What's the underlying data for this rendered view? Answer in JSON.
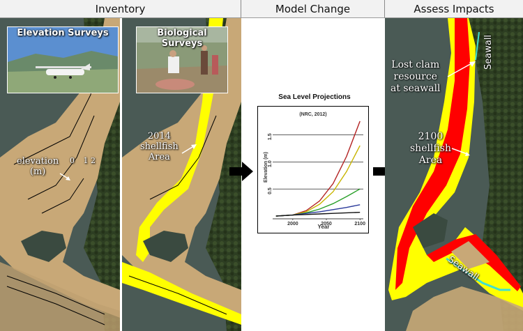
{
  "headers": {
    "inventory": "Inventory",
    "model_change": "Model Change",
    "assess_impacts": "Assess Impacts"
  },
  "photos": {
    "elevation_surveys": "Elevation Surveys",
    "biological_surveys": "Biological Surveys"
  },
  "labels": {
    "elevation_title": "elevation",
    "elevation_unit": "(m)",
    "elevation_value_0": "0",
    "elevation_value_1": "1",
    "elevation_value_2": "2",
    "shellfish_2014_year": "2014",
    "shellfish_2014_word": "shellfish",
    "shellfish_2014_area": "Area",
    "lost_clam_line1": "Lost clam",
    "lost_clam_line2": "resource",
    "lost_clam_line3": "at seawall",
    "shellfish_2100_year": "2100",
    "shellfish_2100_word": "shellfish",
    "shellfish_2100_area": "Area",
    "seawall_top": "Seawall",
    "seawall_bottom": "Seawall"
  },
  "colors": {
    "shellfish_area": "#ffff00",
    "lost_area": "#ff0000",
    "seawall": "#40e0d0",
    "tidal_flat": "#c8a877",
    "water": "#4a5a55",
    "forest": "#2d3e22"
  },
  "chart_data": {
    "type": "line",
    "title": "Sea Level Projections",
    "subtitle": "(NRC, 2012)",
    "xlabel": "Year",
    "ylabel": "Elevation (m)",
    "xlim": [
      1970,
      2105
    ],
    "ylim": [
      -0.05,
      1.8
    ],
    "xticks": [
      2000,
      2050,
      2100
    ],
    "yticks": [
      0.5,
      1.0,
      1.5
    ],
    "grid": "horizontal",
    "series": [
      {
        "color": "#b22222",
        "x": [
          1975,
          2000,
          2020,
          2040,
          2060,
          2080,
          2100
        ],
        "y": [
          0.0,
          0.02,
          0.1,
          0.28,
          0.6,
          1.1,
          1.75
        ]
      },
      {
        "color": "#c8b400",
        "x": [
          1975,
          2000,
          2020,
          2040,
          2060,
          2080,
          2100
        ],
        "y": [
          0.0,
          0.02,
          0.08,
          0.22,
          0.45,
          0.82,
          1.3
        ]
      },
      {
        "color": "#2aa02a",
        "x": [
          1975,
          2000,
          2020,
          2040,
          2060,
          2080,
          2100
        ],
        "y": [
          0.0,
          0.02,
          0.06,
          0.13,
          0.23,
          0.36,
          0.5
        ]
      },
      {
        "color": "#2a3a9a",
        "x": [
          1975,
          2000,
          2020,
          2040,
          2060,
          2080,
          2100
        ],
        "y": [
          0.0,
          0.02,
          0.05,
          0.08,
          0.12,
          0.16,
          0.21
        ]
      },
      {
        "color": "#111111",
        "x": [
          1975,
          2000,
          2020,
          2040,
          2060,
          2080,
          2100
        ],
        "y": [
          0.0,
          0.02,
          0.03,
          0.04,
          0.05,
          0.06,
          0.07
        ]
      }
    ]
  }
}
